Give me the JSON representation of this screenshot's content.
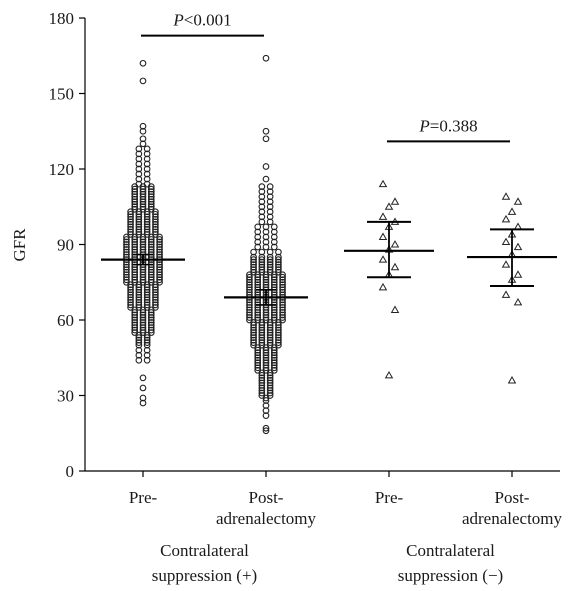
{
  "chart_data": {
    "type": "scatter",
    "title": "",
    "xlabel": "",
    "ylabel": "GFR",
    "ylim": [
      0,
      180
    ],
    "yticks": [
      0,
      30,
      60,
      90,
      120,
      150,
      180
    ],
    "grid": false,
    "categories": [
      {
        "label1": "Pre-",
        "label2": ""
      },
      {
        "label1": "Post-",
        "label2": "adrenalectomy"
      },
      {
        "label1": "Pre-",
        "label2": ""
      },
      {
        "label1": "Post-",
        "label2": "adrenalectomy"
      }
    ],
    "groups": [
      {
        "label1": "Contralateral",
        "label2": "suppression (+)"
      },
      {
        "label1": "Contralateral",
        "label2": "suppression (−)"
      }
    ],
    "series": [
      {
        "marker": "circle",
        "n": 210,
        "median": 84,
        "ci": [
          82,
          86
        ],
        "values": [
          162,
          155,
          137,
          135,
          132,
          130,
          128,
          126,
          124,
          122,
          120,
          118,
          116,
          114,
          113,
          112,
          111,
          110,
          109,
          108,
          107,
          106,
          105,
          104,
          103,
          102,
          101,
          100,
          99,
          98,
          97,
          96,
          95,
          94,
          93,
          92,
          91,
          90,
          89,
          88,
          87,
          86,
          85,
          84,
          83,
          82,
          81,
          80,
          79,
          78,
          77,
          76,
          75,
          74,
          73,
          72,
          71,
          70,
          69,
          68,
          67,
          66,
          65,
          64,
          63,
          62,
          61,
          60,
          59,
          58,
          57,
          56,
          55,
          54,
          53,
          52,
          51,
          50,
          48,
          46,
          44,
          37,
          33,
          29,
          27
        ]
      },
      {
        "marker": "circle",
        "n": 210,
        "median": 69,
        "ci": [
          66,
          72
        ],
        "values": [
          164,
          135,
          132,
          121,
          116,
          113,
          111,
          109,
          107,
          105,
          103,
          101,
          99,
          97,
          95,
          93,
          91,
          89,
          87,
          85,
          84,
          83,
          82,
          81,
          80,
          79,
          78,
          77,
          76,
          75,
          74,
          73,
          72,
          71,
          70,
          69,
          68,
          67,
          66,
          65,
          64,
          63,
          62,
          61,
          60,
          59,
          58,
          57,
          56,
          55,
          54,
          53,
          52,
          51,
          50,
          49,
          48,
          47,
          46,
          45,
          44,
          43,
          42,
          41,
          40,
          39,
          38,
          37,
          36,
          35,
          34,
          33,
          32,
          31,
          30,
          29,
          28,
          26,
          24,
          22,
          17,
          16
        ]
      },
      {
        "marker": "triangle",
        "median": 87.5,
        "lower": 77,
        "upper": 99,
        "values": [
          114,
          107,
          105,
          101,
          99,
          97,
          93,
          90,
          88,
          84,
          81,
          78,
          73,
          64,
          38
        ]
      },
      {
        "marker": "triangle",
        "median": 85,
        "lower": 73.5,
        "upper": 96,
        "values": [
          109,
          107,
          103,
          100,
          97,
          94,
          91,
          89,
          86,
          82,
          78,
          76,
          70,
          67,
          36
        ]
      }
    ],
    "annotations": [
      {
        "label": "P<0.001",
        "p_letter": "P",
        "rest": "<0.001",
        "from": 0,
        "to": 1,
        "y": 173
      },
      {
        "label": "P=0.388",
        "p_letter": "P",
        "rest": "=0.388",
        "from": 2,
        "to": 3,
        "y": 131
      }
    ]
  }
}
